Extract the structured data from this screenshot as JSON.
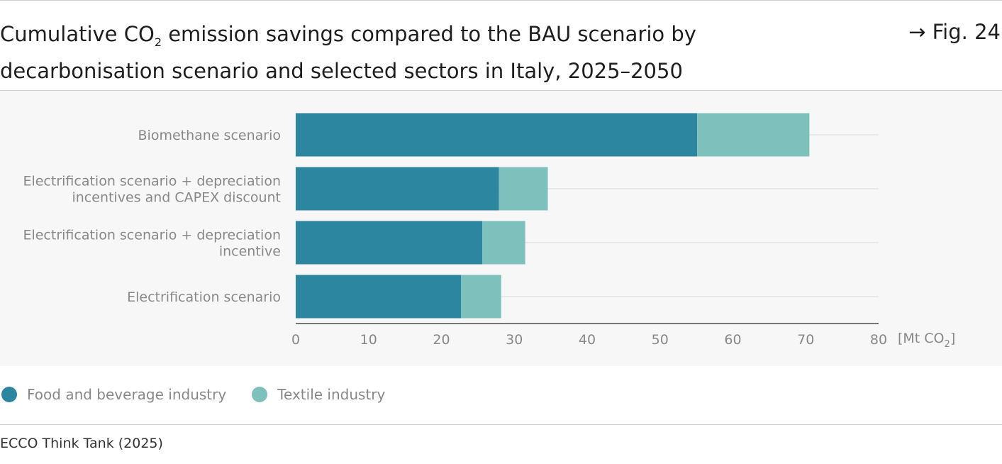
{
  "header": {
    "title_pre": "Cumulative CO",
    "title_sub": "2",
    "title_post": " emission savings compared to the BAU scenario by decarbonisation scenario and selected sectors in Italy, 2025–2050",
    "fig_ref": "→ Fig. 24"
  },
  "chart_data": {
    "type": "bar",
    "orientation": "horizontal",
    "stacked": true,
    "categories": [
      [
        "Biomethane scenario"
      ],
      [
        "Electrification scenario + depreciation",
        "incentives and CAPEX discount"
      ],
      [
        "Electrification scenario + depreciation",
        "incentive"
      ],
      [
        "Electrification scenario"
      ]
    ],
    "series": [
      {
        "name": "Food and beverage industry",
        "color": "#2c869f",
        "values": [
          55.1,
          27.9,
          25.6,
          22.7
        ]
      },
      {
        "name": "Textile industry",
        "color": "#7dc0bc",
        "values": [
          15.4,
          6.7,
          5.9,
          5.5
        ]
      }
    ],
    "xlim": [
      0,
      80
    ],
    "xticks": [
      0,
      10,
      20,
      30,
      40,
      50,
      60,
      70,
      80
    ],
    "xunit_pre": "[Mt CO",
    "xunit_sub": "2",
    "xunit_post": "]",
    "grid": true,
    "legend_position": "bottom-left"
  },
  "source": "ECCO Think Tank (2025)"
}
